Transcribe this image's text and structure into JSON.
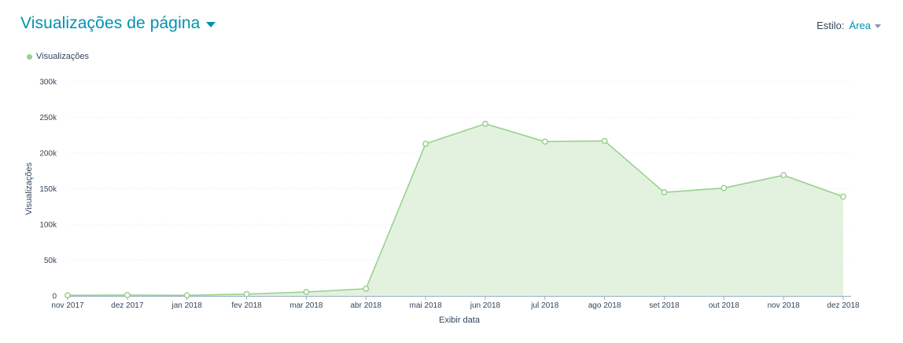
{
  "header": {
    "title": "Visualizações de página",
    "style_label": "Estilo:",
    "style_value": "Área"
  },
  "colors": {
    "accent": "#0091ae",
    "series_line": "#99d18e",
    "series_fill": "#e3f2df",
    "grid": "#e8ecf0"
  },
  "chart_data": {
    "type": "area",
    "categories": [
      "nov 2017",
      "dez 2017",
      "jan 2018",
      "fev 2018",
      "mar 2018",
      "abr 2018",
      "mai 2018",
      "jun 2018",
      "jul 2018",
      "ago 2018",
      "set 2018",
      "out 2018",
      "nov 2018",
      "dez 2018"
    ],
    "series": [
      {
        "name": "Visualizações",
        "values": [
          800,
          1200,
          800,
          2500,
          5500,
          10000,
          213000,
          241000,
          216000,
          217000,
          145000,
          151000,
          169000,
          139000
        ]
      }
    ],
    "y_ticks": [
      {
        "value": 0,
        "label": "0"
      },
      {
        "value": 50000,
        "label": "50k"
      },
      {
        "value": 100000,
        "label": "100k"
      },
      {
        "value": 150000,
        "label": "150k"
      },
      {
        "value": 200000,
        "label": "200k"
      },
      {
        "value": 250000,
        "label": "250k"
      },
      {
        "value": 300000,
        "label": "300k"
      }
    ],
    "ylim": [
      0,
      300000
    ],
    "xlabel": "Exibir data",
    "ylabel": "Visualizações",
    "grid": true,
    "legend": "top-left"
  }
}
